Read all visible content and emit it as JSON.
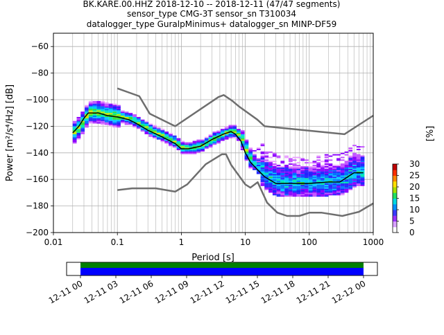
{
  "chart_data": {
    "type": "heatmap",
    "title_lines": [
      "BK.KARE.00.HHZ   2018-12-10 -- 2018-12-11  (47/47 segments)",
      "sensor_type CMG-3T sensor_sn T310034",
      "datalogger_type GuralpMinimus+ datalogger_sn MINP-DF59"
    ],
    "xlabel": "Period [s]",
    "ylabel": "Power [m²/s⁴/Hz] [dB]",
    "xscale": "log",
    "xlim": [
      0.01,
      1000
    ],
    "ylim": [
      -200,
      -50
    ],
    "grid": true,
    "x_ticks": [
      0.01,
      0.1,
      1,
      10,
      100,
      1000
    ],
    "x_tick_labels": [
      "0.01",
      "0.1",
      "1",
      "10",
      "100",
      "1000"
    ],
    "y_ticks": [
      -200,
      -180,
      -160,
      -140,
      -120,
      -100,
      -80,
      -60
    ],
    "y_tick_labels": [
      "−200",
      "−180",
      "−160",
      "−140",
      "−120",
      "−100",
      "−80",
      "−60"
    ],
    "colorbar": {
      "label": "[%]",
      "range": [
        0,
        30
      ],
      "ticks": [
        0,
        5,
        10,
        15,
        20,
        25,
        30
      ],
      "tick_labels": [
        "0",
        "5",
        "10",
        "15",
        "20",
        "25",
        "30"
      ]
    },
    "high_noise_model": {
      "x": [
        0.1,
        0.22,
        0.32,
        0.8,
        3.8,
        4.6,
        6.3,
        7.9,
        15.4,
        20,
        354.8,
        1000
      ],
      "y": [
        -91.5,
        -97.4,
        -110.5,
        -120,
        -98,
        -96.5,
        -101,
        -105,
        -115,
        -120,
        -126,
        -112
      ]
    },
    "low_noise_model": {
      "x": [
        0.1,
        0.17,
        0.4,
        0.8,
        1.24,
        2.4,
        4.3,
        5.0,
        6.0,
        10,
        12,
        15.6,
        21.9,
        31.6,
        45,
        70,
        101,
        154,
        328,
        600,
        1000
      ],
      "y": [
        -168,
        -166.7,
        -166.7,
        -169.2,
        -163.7,
        -148.6,
        -141.1,
        -141.1,
        -149,
        -163.8,
        -166.2,
        -162.1,
        -177.5,
        -185,
        -187.5,
        -187.5,
        -185,
        -185,
        -187.5,
        -184.4,
        -178
      ]
    },
    "mode_curve": {
      "x": [
        0.02,
        0.025,
        0.03,
        0.035,
        0.05,
        0.07,
        0.1,
        0.15,
        0.2,
        0.3,
        0.5,
        0.8,
        1.0,
        1.3,
        2.0,
        3.0,
        4.5,
        6.0,
        7.0,
        8.5,
        10,
        12,
        15,
        20,
        30,
        50,
        70,
        100,
        200,
        300,
        500,
        700
      ],
      "y": [
        -125,
        -120,
        -114,
        -110,
        -110,
        -112,
        -113,
        -115,
        -118,
        -123,
        -128,
        -133,
        -137,
        -137,
        -135,
        -130,
        -126,
        -124,
        -126,
        -131,
        -140,
        -147,
        -152,
        -158,
        -163,
        -163,
        -163,
        -163,
        -162,
        -162,
        -155,
        -155
      ]
    },
    "colorbar_time": {
      "tick_labels": [
        "12-11 00",
        "12-11 03",
        "12-11 06",
        "12-11 09",
        "12-11 12",
        "12-11 15",
        "12-11 18",
        "12-11 21",
        "12-12 00"
      ]
    }
  }
}
